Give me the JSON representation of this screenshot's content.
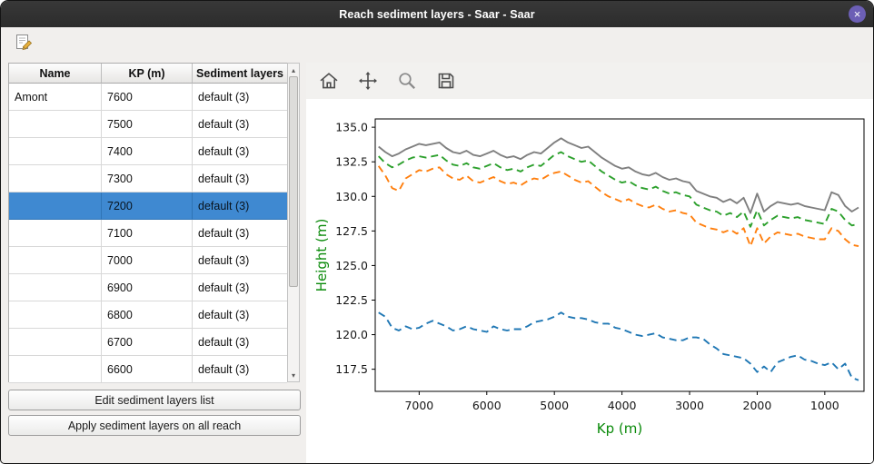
{
  "window": {
    "title": "Reach sediment layers - Saar - Saar",
    "close_glyph": "×"
  },
  "toolbar": {
    "edit_icon": "edit-note-icon"
  },
  "table": {
    "headers": [
      "Name",
      "KP (m)",
      "Sediment layers"
    ],
    "rows": [
      {
        "name": "Amont",
        "kp": "7600",
        "layers": "default (3)",
        "selected": false
      },
      {
        "name": "",
        "kp": "7500",
        "layers": "default (3)",
        "selected": false
      },
      {
        "name": "",
        "kp": "7400",
        "layers": "default (3)",
        "selected": false
      },
      {
        "name": "",
        "kp": "7300",
        "layers": "default (3)",
        "selected": false
      },
      {
        "name": "",
        "kp": "7200",
        "layers": "default (3)",
        "selected": true
      },
      {
        "name": "",
        "kp": "7100",
        "layers": "default (3)",
        "selected": false
      },
      {
        "name": "",
        "kp": "7000",
        "layers": "default (3)",
        "selected": false
      },
      {
        "name": "",
        "kp": "6900",
        "layers": "default (3)",
        "selected": false
      },
      {
        "name": "",
        "kp": "6800",
        "layers": "default (3)",
        "selected": false
      },
      {
        "name": "",
        "kp": "6700",
        "layers": "default (3)",
        "selected": false
      },
      {
        "name": "",
        "kp": "6600",
        "layers": "default (3)",
        "selected": false
      }
    ],
    "scroll_up_glyph": "▴",
    "scroll_down_glyph": "▾"
  },
  "buttons": {
    "edit": "Edit sediment layers list",
    "apply": "Apply sediment layers on all reach"
  },
  "plot_toolbar": {
    "icons": [
      "home-icon",
      "pan-icon",
      "zoom-icon",
      "save-icon"
    ]
  },
  "colors": {
    "window_bg": "#f1efed",
    "selection": "#3f89d1",
    "close_button": "#6c5fb5",
    "axis_label_green": "#0a8a0a"
  },
  "chart_data": {
    "type": "line",
    "title": "",
    "xlabel": "Kp (m)",
    "ylabel": "Height (m)",
    "axis_label_color": "#0a8a0a",
    "x_reversed": true,
    "xlim": [
      7650,
      420
    ],
    "ylim": [
      115.9,
      135.6
    ],
    "x_ticks": [
      7000,
      6000,
      5000,
      4000,
      3000,
      2000,
      1000
    ],
    "y_ticks": [
      117.5,
      120.0,
      122.5,
      125.0,
      127.5,
      130.0,
      132.5,
      135.0
    ],
    "grid": false,
    "legend": "none",
    "x": [
      7600,
      7500,
      7400,
      7300,
      7200,
      7100,
      7000,
      6900,
      6800,
      6700,
      6600,
      6500,
      6400,
      6300,
      6200,
      6100,
      6000,
      5900,
      5800,
      5700,
      5600,
      5500,
      5400,
      5300,
      5200,
      5100,
      5000,
      4900,
      4800,
      4700,
      4600,
      4500,
      4400,
      4300,
      4200,
      4100,
      4000,
      3900,
      3800,
      3700,
      3600,
      3500,
      3400,
      3300,
      3200,
      3100,
      3000,
      2900,
      2800,
      2700,
      2600,
      2500,
      2400,
      2300,
      2200,
      2100,
      2000,
      1900,
      1800,
      1700,
      1600,
      1500,
      1400,
      1300,
      1200,
      1100,
      1000,
      900,
      800,
      700,
      600,
      500
    ],
    "series": [
      {
        "name": "gray-solid-line",
        "color": "#7f7f7f",
        "style": "solid",
        "values": [
          133.6,
          133.2,
          132.9,
          133.1,
          133.4,
          133.6,
          133.8,
          133.7,
          133.8,
          133.9,
          133.5,
          133.2,
          133.1,
          133.3,
          133.0,
          132.9,
          133.1,
          133.3,
          133.0,
          132.8,
          132.9,
          132.7,
          133.0,
          133.2,
          133.1,
          133.5,
          133.9,
          134.2,
          133.9,
          133.7,
          133.5,
          133.6,
          133.2,
          132.8,
          132.5,
          132.2,
          132.0,
          132.1,
          131.8,
          131.6,
          131.5,
          131.7,
          131.4,
          131.2,
          131.3,
          131.1,
          131.0,
          130.4,
          130.2,
          130.0,
          129.9,
          129.6,
          129.8,
          129.5,
          129.9,
          128.8,
          130.2,
          128.9,
          129.3,
          129.6,
          129.5,
          129.4,
          129.5,
          129.3,
          129.2,
          129.1,
          129.0,
          130.3,
          130.1,
          129.3,
          128.9,
          129.2
        ]
      },
      {
        "name": "green-dashed-line",
        "color": "#2ca02c",
        "style": "dashed",
        "values": [
          132.9,
          132.4,
          132.1,
          132.3,
          132.6,
          132.8,
          132.9,
          132.8,
          132.9,
          133.0,
          132.6,
          132.3,
          132.2,
          132.4,
          132.1,
          132.0,
          132.2,
          132.4,
          132.1,
          131.9,
          132.0,
          131.8,
          132.1,
          132.3,
          132.2,
          132.6,
          133.0,
          133.2,
          132.9,
          132.7,
          132.5,
          132.6,
          132.2,
          131.8,
          131.5,
          131.2,
          131.0,
          131.1,
          130.8,
          130.6,
          130.5,
          130.7,
          130.4,
          130.2,
          130.3,
          130.1,
          130.0,
          129.4,
          129.2,
          129.0,
          128.9,
          128.6,
          128.8,
          128.5,
          128.9,
          127.8,
          129.0,
          127.9,
          128.3,
          128.6,
          128.5,
          128.4,
          128.5,
          128.3,
          128.2,
          128.1,
          128.0,
          129.1,
          128.9,
          128.3,
          127.9,
          128.0
        ]
      },
      {
        "name": "orange-dashed-line",
        "color": "#ff7f0e",
        "style": "dashed",
        "values": [
          132.2,
          131.5,
          130.6,
          130.4,
          131.3,
          131.6,
          131.9,
          131.8,
          132.0,
          132.1,
          131.6,
          131.3,
          131.2,
          131.5,
          131.1,
          131.0,
          131.2,
          131.4,
          131.1,
          130.9,
          131.0,
          130.8,
          131.1,
          131.3,
          131.2,
          131.5,
          131.7,
          131.8,
          131.5,
          131.2,
          131.0,
          131.1,
          130.7,
          130.3,
          130.0,
          129.8,
          129.6,
          129.8,
          129.5,
          129.3,
          129.2,
          129.4,
          129.1,
          128.9,
          129.0,
          128.8,
          128.7,
          128.1,
          127.9,
          127.7,
          127.6,
          127.4,
          127.6,
          127.3,
          127.7,
          126.4,
          127.7,
          126.6,
          127.1,
          127.4,
          127.3,
          127.2,
          127.3,
          127.1,
          127.0,
          126.9,
          126.9,
          127.7,
          127.5,
          126.9,
          126.5,
          126.4
        ]
      },
      {
        "name": "blue-dashed-line",
        "color": "#1f77b4",
        "style": "dashed",
        "values": [
          121.6,
          121.3,
          120.5,
          120.3,
          120.6,
          120.4,
          120.5,
          120.8,
          121.0,
          120.8,
          120.6,
          120.3,
          120.4,
          120.6,
          120.4,
          120.3,
          120.2,
          120.6,
          120.4,
          120.3,
          120.4,
          120.4,
          120.6,
          120.9,
          121.0,
          121.1,
          121.3,
          121.6,
          121.3,
          121.2,
          121.2,
          121.1,
          120.9,
          120.8,
          120.8,
          120.5,
          120.4,
          120.2,
          120.0,
          119.9,
          120.0,
          120.1,
          119.8,
          119.7,
          119.6,
          119.6,
          119.8,
          119.8,
          119.7,
          119.3,
          119.0,
          118.6,
          118.5,
          118.4,
          118.3,
          117.9,
          117.3,
          117.7,
          117.3,
          118.0,
          118.2,
          118.4,
          118.5,
          118.2,
          118.1,
          117.9,
          117.8,
          118.0,
          117.5,
          117.9,
          116.9,
          116.7
        ]
      }
    ]
  }
}
